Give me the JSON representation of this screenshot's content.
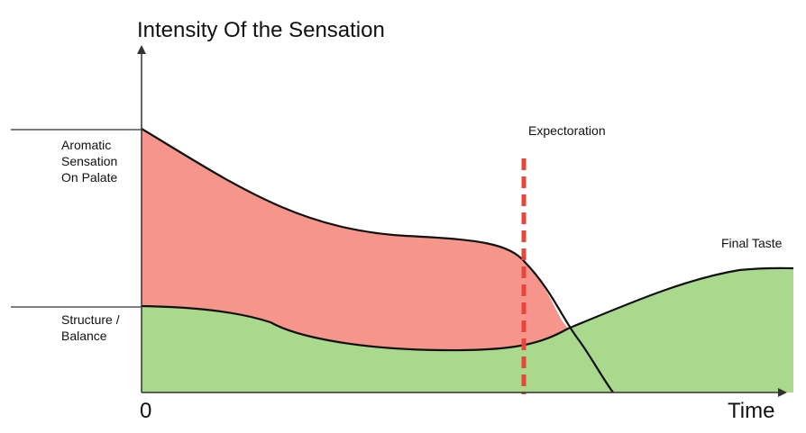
{
  "title": "Intensity Of the Sensation",
  "x_axis": {
    "origin_label": "0",
    "end_label": "Time"
  },
  "levels": {
    "aromatic": {
      "label_lines": [
        "Aromatic",
        "Sensation",
        "On Palate"
      ]
    },
    "structure": {
      "label_lines": [
        "Structure /",
        "Balance"
      ]
    }
  },
  "annotations": {
    "expectoration": "Expectoration",
    "final_taste": "Final Taste"
  },
  "colors": {
    "aromatic_fill": "#f5958c",
    "structure_fill": "#a9d98c",
    "curve_stroke": "#111111",
    "expectoration_line": "#e8453c",
    "axis": "#333333"
  }
}
